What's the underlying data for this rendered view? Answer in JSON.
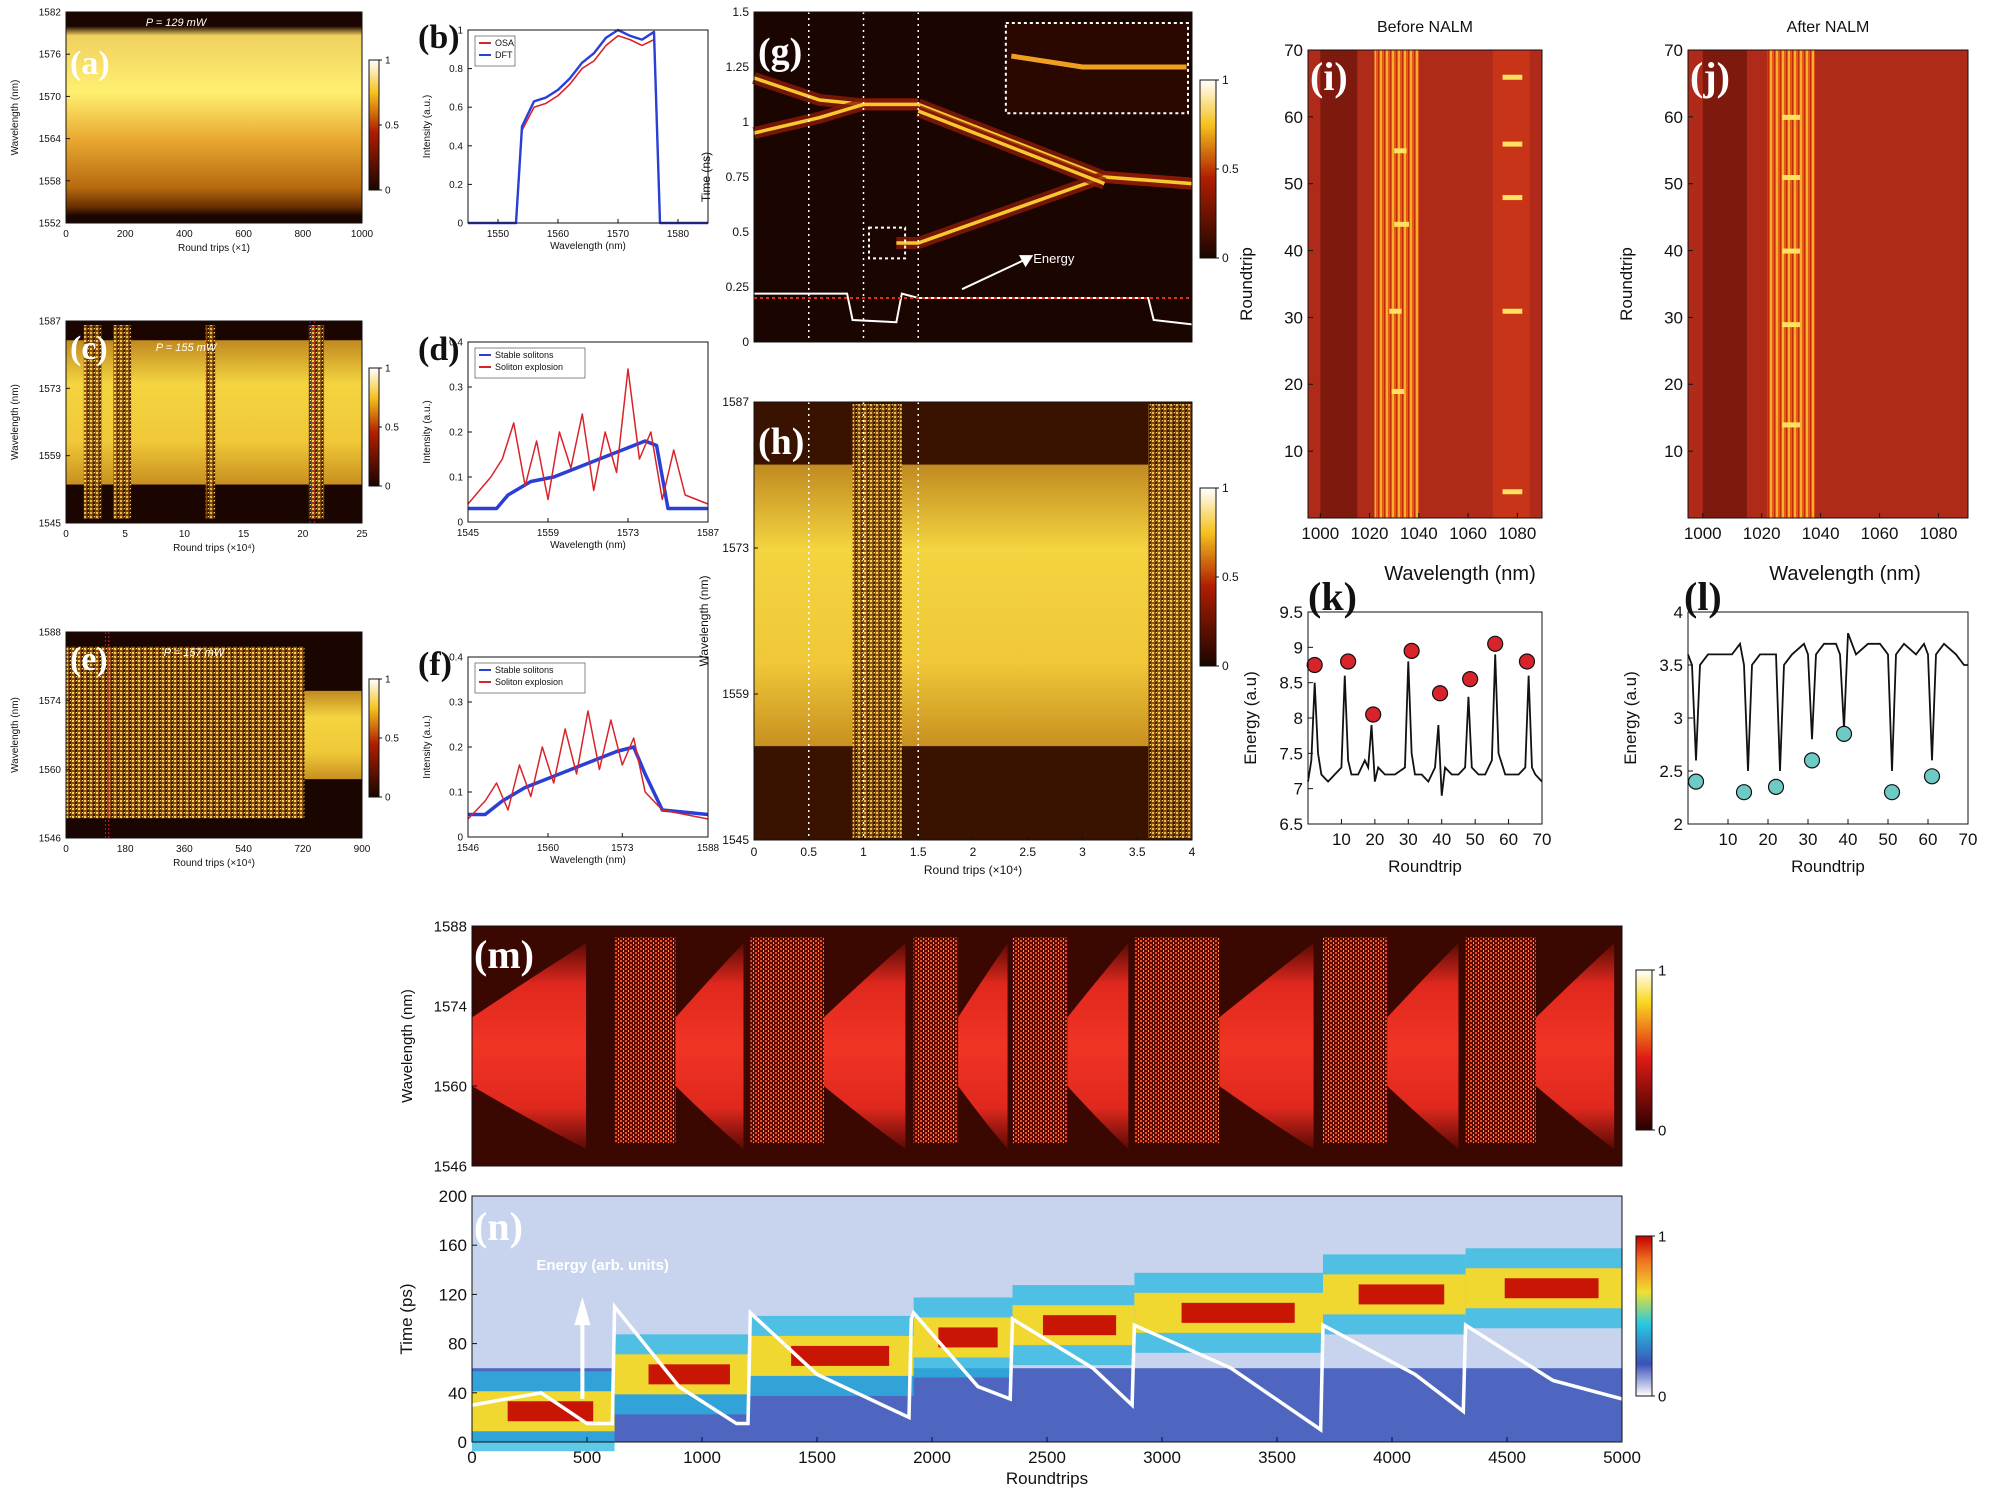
{
  "figure": {
    "colors": {
      "heat_dark": "#1a0500",
      "heat_red": "#c8141e",
      "heat_yellow": "#f6e01e",
      "osa_line": "#d8232a",
      "dft_line": "#2a3fd6",
      "marker_red": "#d8232a",
      "marker_teal": "#6ecac4",
      "jet_low": "#3a52b8",
      "jet_high": "#c40000"
    },
    "icons": [
      "energy-arrow-icon",
      "dotted-box-icon"
    ]
  },
  "chart_data": [
    {
      "id": "a",
      "panel_label": "(a)",
      "type": "heatmap",
      "annotation": "P = 129 mW",
      "xlabel": "Round trips (×1)",
      "ylabel": "Wavelength (nm)",
      "xlim": [
        0,
        1000
      ],
      "ylim": [
        1552,
        1582
      ],
      "x_ticks": [
        "0",
        "200",
        "400",
        "600",
        "800",
        "1000"
      ],
      "y_ticks": [
        "1582",
        "1576",
        "1570",
        "1564",
        "1558",
        "1552"
      ],
      "colorbar_ticks": [
        "1",
        "0.5",
        "0"
      ],
      "spectrum_band": [
        1553,
        1580
      ]
    },
    {
      "id": "b",
      "panel_label": "(b)",
      "type": "line",
      "xlabel": "Wavelength (nm)",
      "ylabel": "Intensity (a.u.)",
      "xlim": [
        1545,
        1585
      ],
      "ylim": [
        0,
        1
      ],
      "x_ticks": [
        "1550",
        "1560",
        "1570",
        "1580"
      ],
      "y_ticks": [
        "0",
        "0.2",
        "0.4",
        "0.6",
        "0.8",
        "1"
      ],
      "legend": [
        "OSA",
        "DFT"
      ],
      "series": [
        {
          "name": "OSA",
          "x": [
            1545,
            1553,
            1554,
            1556,
            1558,
            1560,
            1562,
            1564,
            1566,
            1568,
            1570,
            1572,
            1574,
            1576,
            1577,
            1585
          ],
          "y": [
            0.0,
            0.0,
            0.48,
            0.6,
            0.62,
            0.66,
            0.72,
            0.8,
            0.84,
            0.92,
            0.97,
            0.95,
            0.92,
            0.95,
            0.0,
            0.0
          ]
        },
        {
          "name": "DFT",
          "x": [
            1545,
            1553,
            1554,
            1556,
            1558,
            1560,
            1562,
            1564,
            1566,
            1568,
            1570,
            1572,
            1574,
            1576,
            1577,
            1585
          ],
          "y": [
            0.0,
            0.0,
            0.5,
            0.63,
            0.65,
            0.69,
            0.75,
            0.83,
            0.88,
            0.96,
            1.0,
            0.97,
            0.95,
            0.99,
            0.0,
            0.0
          ]
        }
      ]
    },
    {
      "id": "c",
      "panel_label": "(c)",
      "type": "heatmap",
      "annotation": "P = 155 mW",
      "xlabel": "Round trips (×10⁴)",
      "ylabel": "Wavelength (nm)",
      "xlim": [
        0,
        25
      ],
      "ylim": [
        1545,
        1587
      ],
      "x_ticks": [
        "0",
        "5",
        "10",
        "15",
        "20",
        "25"
      ],
      "y_ticks": [
        "1587",
        "1573",
        "1559",
        "1545"
      ],
      "colorbar_ticks": [
        "1",
        "0.5",
        "0"
      ],
      "spectrum_band": [
        1553,
        1583
      ],
      "explosion_windows": [
        [
          1.5,
          3.0
        ],
        [
          4.0,
          5.5
        ],
        [
          11.8,
          12.6
        ],
        [
          20.5,
          21.8
        ]
      ]
    },
    {
      "id": "d",
      "panel_label": "(d)",
      "type": "line",
      "xlabel": "Wavelength (nm)",
      "ylabel": "Intensity (a.u.)",
      "xlim": [
        1545,
        1587
      ],
      "ylim": [
        0,
        0.4
      ],
      "x_ticks": [
        "1545",
        "1559",
        "1573",
        "1587"
      ],
      "y_ticks": [
        "0",
        "0.1",
        "0.2",
        "0.3",
        "0.4"
      ],
      "legend": [
        "Stable solitons",
        "Soliton explosion"
      ],
      "series": [
        {
          "name": "Stable solitons",
          "x": [
            1545,
            1550,
            1552,
            1556,
            1560,
            1564,
            1568,
            1572,
            1576,
            1578,
            1580,
            1587
          ],
          "y": [
            0.03,
            0.03,
            0.06,
            0.09,
            0.1,
            0.12,
            0.14,
            0.16,
            0.18,
            0.17,
            0.03,
            0.03
          ]
        },
        {
          "name": "Soliton explosion",
          "x": [
            1545,
            1549,
            1551,
            1553,
            1555,
            1557,
            1559,
            1561,
            1563,
            1565,
            1567,
            1569,
            1571,
            1573,
            1575,
            1577,
            1579,
            1581,
            1583,
            1587
          ],
          "y": [
            0.04,
            0.1,
            0.14,
            0.22,
            0.08,
            0.18,
            0.05,
            0.2,
            0.12,
            0.24,
            0.07,
            0.2,
            0.11,
            0.34,
            0.14,
            0.2,
            0.05,
            0.16,
            0.06,
            0.04
          ]
        }
      ]
    },
    {
      "id": "e",
      "panel_label": "(e)",
      "type": "heatmap",
      "annotation": "P = 157 mW",
      "xlabel": "Round trips (×10⁴)",
      "ylabel": "Wavelength (nm)",
      "xlim": [
        0,
        900
      ],
      "ylim": [
        1546,
        1588
      ],
      "x_ticks": [
        "0",
        "180",
        "360",
        "540",
        "720",
        "900"
      ],
      "y_ticks": [
        "1588",
        "1574",
        "1560",
        "1546"
      ],
      "colorbar_ticks": [
        "1",
        "0.5",
        "0"
      ],
      "spectrum_band": [
        1550,
        1585
      ],
      "stable_after": 725
    },
    {
      "id": "f",
      "panel_label": "(f)",
      "type": "line",
      "xlabel": "Wavelength (nm)",
      "ylabel": "Intensity (a.u.)",
      "xlim": [
        1546,
        1588
      ],
      "ylim": [
        0,
        0.4
      ],
      "x_ticks": [
        "1546",
        "1560",
        "1573",
        "1588"
      ],
      "y_ticks": [
        "0",
        "0.1",
        "0.2",
        "0.3",
        "0.4"
      ],
      "legend": [
        "Stable solitons",
        "Soliton explosion"
      ],
      "series": [
        {
          "name": "Stable solitons",
          "x": [
            1546,
            1549,
            1552,
            1556,
            1560,
            1564,
            1568,
            1572,
            1575,
            1577,
            1580,
            1588
          ],
          "y": [
            0.05,
            0.05,
            0.08,
            0.11,
            0.13,
            0.15,
            0.17,
            0.19,
            0.2,
            0.14,
            0.06,
            0.05
          ]
        },
        {
          "name": "Soliton explosion",
          "x": [
            1546,
            1549,
            1551,
            1553,
            1555,
            1557,
            1559,
            1561,
            1563,
            1565,
            1567,
            1569,
            1571,
            1573,
            1575,
            1577,
            1580,
            1588
          ],
          "y": [
            0.04,
            0.08,
            0.12,
            0.06,
            0.16,
            0.09,
            0.2,
            0.12,
            0.24,
            0.14,
            0.28,
            0.15,
            0.26,
            0.16,
            0.22,
            0.1,
            0.06,
            0.04
          ]
        }
      ]
    },
    {
      "id": "g",
      "panel_label": "(g)",
      "type": "heatmap",
      "annotation": "Energy",
      "xlabel": "",
      "ylabel": "Time (ns)",
      "xlim": [
        0,
        4
      ],
      "ylim": [
        0,
        1.5
      ],
      "y_ticks": [
        "0",
        "0.25",
        "0.5",
        "0.75",
        "1",
        "1.25",
        "1.5"
      ],
      "colorbar_ticks": [
        "1",
        "0.5",
        "0"
      ],
      "dashed_lines_x": [
        0.5,
        1.0,
        1.5
      ],
      "traces": [
        {
          "x": [
            0,
            0.6,
            1.0,
            1.5
          ],
          "y": [
            1.2,
            1.1,
            1.08,
            1.08
          ]
        },
        {
          "x": [
            0,
            0.6,
            1.0,
            1.5
          ],
          "y": [
            0.95,
            1.02,
            1.08,
            1.08
          ]
        },
        {
          "x": [
            1.5,
            3.2,
            4.0
          ],
          "y": [
            1.08,
            0.75,
            0.72
          ]
        },
        {
          "x": [
            1.3,
            1.5,
            3.2,
            4.0
          ],
          "y": [
            0.45,
            0.45,
            0.75,
            0.72
          ]
        },
        {
          "x": [
            1.5,
            3.2
          ],
          "y": [
            1.05,
            0.72
          ]
        }
      ],
      "energy_trace": {
        "x": [
          0,
          0.85,
          0.9,
          1.3,
          1.35,
          1.5,
          3.6,
          3.65,
          4.0
        ],
        "y": [
          0.22,
          0.22,
          0.1,
          0.09,
          0.22,
          0.2,
          0.2,
          0.1,
          0.08
        ]
      },
      "energy_reference": 0.2
    },
    {
      "id": "h",
      "panel_label": "(h)",
      "type": "heatmap",
      "xlabel": "Round trips (×10⁴)",
      "ylabel": "Wavelength (nm)",
      "xlim": [
        0,
        4
      ],
      "ylim": [
        1545,
        1587
      ],
      "x_ticks": [
        "0",
        "0.5",
        "1",
        "1.5",
        "2",
        "2.5",
        "3",
        "3.5",
        "4"
      ],
      "y_ticks": [
        "1587",
        "1573",
        "1559",
        "1545"
      ],
      "colorbar_ticks": [
        "1",
        "0.5",
        "0"
      ],
      "spectrum_band": [
        1554,
        1581
      ],
      "explosion_windows": [
        [
          0.9,
          1.35
        ],
        [
          3.6,
          4.0
        ]
      ],
      "dashed_lines_x": [
        0.5,
        1.0,
        1.5
      ]
    },
    {
      "id": "i",
      "panel_label": "(i)",
      "type": "heatmap",
      "title": "Before NALM",
      "xlabel": "",
      "ylabel": "Roundtrip",
      "xlim": [
        995,
        1090
      ],
      "ylim": [
        0,
        70
      ],
      "x_ticks": [
        "1000",
        "1020",
        "1040",
        "1060",
        "1080"
      ],
      "y_ticks": [
        "10",
        "20",
        "30",
        "40",
        "50",
        "60",
        "70"
      ],
      "bands": [
        [
          1022,
          1040
        ],
        [
          1070,
          1085
        ]
      ]
    },
    {
      "id": "j",
      "panel_label": "(j)",
      "type": "heatmap",
      "title": "After NALM",
      "xlabel": "",
      "ylabel": "Roundtrip",
      "xlim": [
        995,
        1090
      ],
      "ylim": [
        0,
        70
      ],
      "x_ticks": [
        "1000",
        "1020",
        "1040",
        "1060",
        "1080"
      ],
      "y_ticks": [
        "10",
        "20",
        "30",
        "40",
        "50",
        "60",
        "70"
      ],
      "bands": [
        [
          1022,
          1038
        ]
      ]
    },
    {
      "id": "k",
      "panel_label": "(k)",
      "type": "line",
      "shared_top_xlabel": "Wavelength (nm)",
      "xlabel": "Roundtrip",
      "ylabel": "Energy (a.u)",
      "xlim": [
        0,
        70
      ],
      "ylim": [
        6.5,
        9.5
      ],
      "x_ticks": [
        "10",
        "20",
        "30",
        "40",
        "50",
        "60",
        "70"
      ],
      "y_ticks": [
        "6.5",
        "7",
        "7.5",
        "8",
        "8.5",
        "9",
        "9.5"
      ],
      "series": [
        {
          "name": "",
          "x": [
            0,
            1,
            2,
            3,
            4,
            6,
            8,
            10,
            11,
            12,
            13,
            15,
            17,
            18,
            19,
            20,
            21,
            23,
            26,
            29,
            30,
            31,
            32,
            34,
            36,
            38,
            39,
            40,
            41,
            43,
            45,
            47,
            48,
            49,
            51,
            53,
            55,
            56,
            57,
            59,
            61,
            63,
            65,
            66,
            67,
            68,
            70
          ],
          "y": [
            7.1,
            7.4,
            8.5,
            7.5,
            7.2,
            7.1,
            7.2,
            7.3,
            8.6,
            7.4,
            7.2,
            7.2,
            7.4,
            7.3,
            7.9,
            7.1,
            7.3,
            7.2,
            7.2,
            7.3,
            8.8,
            7.5,
            7.2,
            7.2,
            7.1,
            7.3,
            7.9,
            6.9,
            7.3,
            7.2,
            7.2,
            7.3,
            8.3,
            7.3,
            7.2,
            7.2,
            7.4,
            8.9,
            7.5,
            7.2,
            7.2,
            7.2,
            7.3,
            8.6,
            7.3,
            7.2,
            7.1
          ]
        }
      ],
      "markers": {
        "x": [
          2,
          12,
          19.5,
          31,
          39.5,
          48.5,
          56,
          65.5
        ],
        "y": [
          8.75,
          8.8,
          8.05,
          8.95,
          8.35,
          8.55,
          9.05,
          8.8
        ]
      }
    },
    {
      "id": "l",
      "panel_label": "(l)",
      "type": "line",
      "shared_top_xlabel": "Wavelength (nm)",
      "xlabel": "Roundtrip",
      "ylabel": "Energy (a.u)",
      "xlim": [
        0,
        70
      ],
      "ylim": [
        2,
        4
      ],
      "x_ticks": [
        "10",
        "20",
        "30",
        "40",
        "50",
        "60",
        "70"
      ],
      "y_ticks": [
        "2",
        "2.5",
        "3",
        "3.5",
        "4"
      ],
      "series": [
        {
          "name": "",
          "x": [
            0,
            1,
            2,
            3,
            5,
            8,
            11,
            13,
            14,
            15,
            16,
            18,
            21,
            22,
            23,
            24,
            26,
            29,
            30,
            31,
            32,
            34,
            37,
            38,
            39,
            40,
            42,
            45,
            48,
            50,
            51,
            52,
            54,
            57,
            59,
            60,
            61,
            62,
            64,
            67,
            69,
            70
          ],
          "y": [
            3.6,
            3.5,
            2.6,
            3.5,
            3.6,
            3.6,
            3.6,
            3.7,
            3.5,
            2.5,
            3.5,
            3.6,
            3.6,
            3.6,
            2.5,
            3.5,
            3.6,
            3.7,
            3.6,
            2.8,
            3.6,
            3.7,
            3.7,
            3.6,
            2.9,
            3.8,
            3.6,
            3.7,
            3.7,
            3.6,
            2.5,
            3.6,
            3.7,
            3.6,
            3.7,
            3.6,
            2.6,
            3.6,
            3.7,
            3.6,
            3.5,
            3.5
          ]
        }
      ],
      "markers": {
        "x": [
          2,
          14,
          22,
          31,
          39,
          51,
          61
        ],
        "y": [
          2.4,
          2.3,
          2.35,
          2.6,
          2.85,
          2.3,
          2.45
        ]
      }
    },
    {
      "id": "m",
      "panel_label": "(m)",
      "type": "heatmap",
      "xlabel": "",
      "ylabel": "Wavelength (nm)",
      "xlim": [
        0,
        5000
      ],
      "ylim": [
        1546,
        1588
      ],
      "y_ticks": [
        "1588",
        "1574",
        "1560",
        "1546"
      ],
      "colorbar_ticks": [
        "1",
        "0"
      ],
      "segments": [
        [
          0,
          620
        ],
        [
          620,
          1210
        ],
        [
          1210,
          1920
        ],
        [
          1920,
          2350
        ],
        [
          2350,
          2880
        ],
        [
          2880,
          3700
        ],
        [
          3700,
          4320
        ],
        [
          4320,
          5000
        ]
      ]
    },
    {
      "id": "n",
      "panel_label": "(n)",
      "type": "heatmap",
      "annotation": "Energy (arb. units)",
      "xlabel": "Roundtrips",
      "ylabel": "Time (ps)",
      "xlim": [
        0,
        5000
      ],
      "ylim": [
        0,
        200
      ],
      "x_ticks": [
        "0",
        "500",
        "1000",
        "1500",
        "2000",
        "2500",
        "3000",
        "3500",
        "4000",
        "4500",
        "5000"
      ],
      "y_ticks": [
        "0",
        "40",
        "80",
        "120",
        "160",
        "200"
      ],
      "colorbar_ticks": [
        "1",
        "0"
      ],
      "pulse_center": [
        {
          "x": 0,
          "y": 25
        },
        {
          "x": 620,
          "y": 55
        },
        {
          "x": 1210,
          "y": 70
        },
        {
          "x": 1920,
          "y": 85
        },
        {
          "x": 2350,
          "y": 95
        },
        {
          "x": 2880,
          "y": 105
        },
        {
          "x": 3700,
          "y": 120
        },
        {
          "x": 4320,
          "y": 125
        },
        {
          "x": 5000,
          "y": 125
        }
      ],
      "energy_trace": {
        "x": [
          0,
          300,
          500,
          610,
          620,
          900,
          1150,
          1200,
          1210,
          1500,
          1900,
          1910,
          1920,
          2200,
          2340,
          2350,
          2700,
          2870,
          2880,
          3300,
          3690,
          3700,
          4100,
          4310,
          4320,
          4700,
          5000
        ],
        "y": [
          30,
          40,
          15,
          15,
          110,
          45,
          15,
          15,
          105,
          55,
          20,
          100,
          105,
          45,
          35,
          100,
          60,
          30,
          95,
          60,
          10,
          95,
          55,
          25,
          95,
          50,
          35
        ]
      }
    }
  ]
}
